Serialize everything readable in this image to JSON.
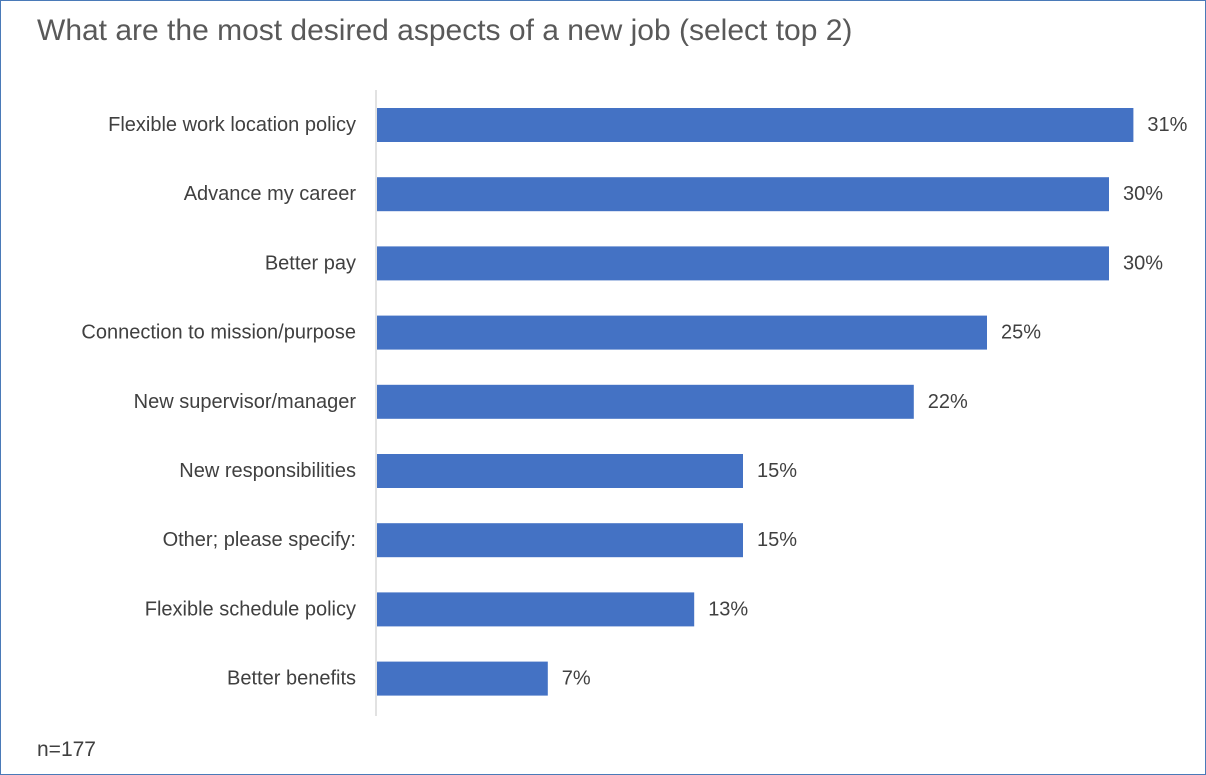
{
  "chart_data": {
    "type": "bar",
    "orientation": "horizontal",
    "title": "What are the most desired aspects of a new job (select top 2)",
    "categories": [
      "Flexible work location policy",
      "Advance my career",
      "Better pay",
      "Connection to mission/purpose",
      "New supervisor/manager",
      "New responsibilities",
      "Other; please specify:",
      "Flexible schedule policy",
      "Better benefits"
    ],
    "values": [
      31,
      30,
      30,
      25,
      22,
      15,
      15,
      13,
      7
    ],
    "value_labels": [
      "31%",
      "30%",
      "30%",
      "25%",
      "22%",
      "15%",
      "15%",
      "13%",
      "7%"
    ],
    "xlabel": "",
    "ylabel": "",
    "bar_color": "#4472c4",
    "axis_color": "#d9d9d9",
    "grid": false,
    "legend": false
  },
  "note": "n=177"
}
